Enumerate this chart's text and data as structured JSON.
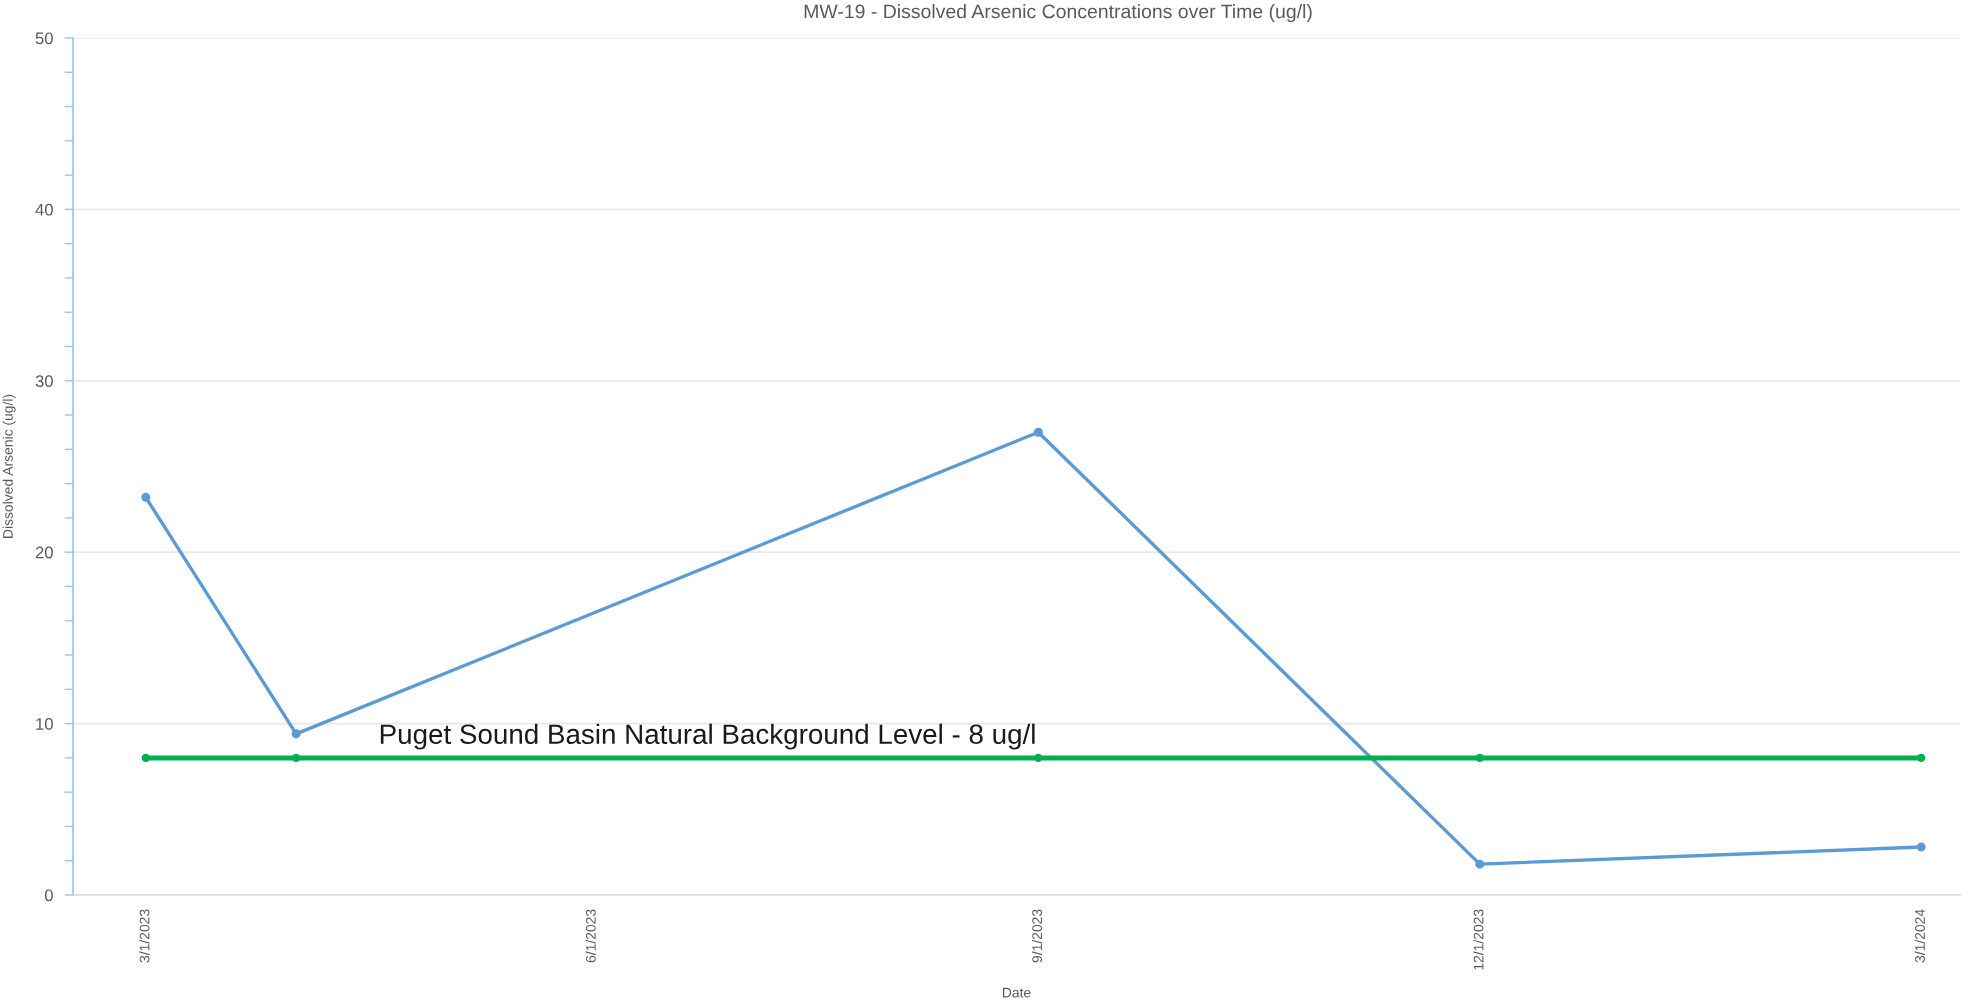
{
  "chart_data": {
    "type": "line",
    "title": "MW-19 - Dissolved Arsenic Concentrations over Time (ug/l)",
    "xlabel": "Date",
    "ylabel": "Dissolved Arsenic (ug/l)",
    "x": [
      "2023-03-01",
      "2023-04-01",
      "2023-09-01",
      "2023-12-01",
      "2024-03-01"
    ],
    "series": [
      {
        "color": "#5b9bd5",
        "values": [
          23.2,
          9.4,
          27,
          1.8,
          2.8
        ]
      },
      {
        "color": "#00b050",
        "values": [
          8,
          8,
          8,
          8,
          8
        ]
      }
    ],
    "xlim": [
      "2023-02-14",
      "2024-03-09"
    ],
    "xticks": [
      {
        "value": "2023-03-01",
        "label": "3/1/2023"
      },
      {
        "value": "2023-06-01",
        "label": "6/1/2023"
      },
      {
        "value": "2023-09-01",
        "label": "9/1/2023"
      },
      {
        "value": "2023-12-01",
        "label": "12/1/2023"
      },
      {
        "value": "2024-03-01",
        "label": "3/1/2024"
      }
    ],
    "ylim": [
      0,
      50
    ],
    "yticks": [
      0,
      {
        "value": 2,
        "label": null
      },
      {
        "value": 4,
        "label": null
      },
      {
        "value": 6,
        "label": null
      },
      {
        "value": 8,
        "label": null
      },
      10,
      {
        "value": 12,
        "label": null
      },
      {
        "value": 14,
        "label": null
      },
      {
        "value": 16,
        "label": null
      },
      {
        "value": 18,
        "label": null
      },
      20,
      {
        "value": 22,
        "label": null
      },
      {
        "value": 24,
        "label": null
      },
      {
        "value": 26,
        "label": null
      },
      {
        "value": 28,
        "label": null
      },
      30,
      {
        "value": 32,
        "label": null
      },
      {
        "value": 34,
        "label": null
      },
      {
        "value": 36,
        "label": null
      },
      {
        "value": 38,
        "label": null
      },
      40,
      {
        "value": 42,
        "label": null
      },
      {
        "value": 44,
        "label": null
      },
      {
        "value": 46,
        "label": null
      },
      {
        "value": 48,
        "label": null
      },
      50
    ],
    "grid": "y",
    "marker": "circle",
    "line_style": "solid",
    "annotations": [
      {
        "text": "Puget Sound Basin Natural Background Level - 8 ug/l",
        "x": "2023-04-18",
        "y": 8
      }
    ]
  }
}
